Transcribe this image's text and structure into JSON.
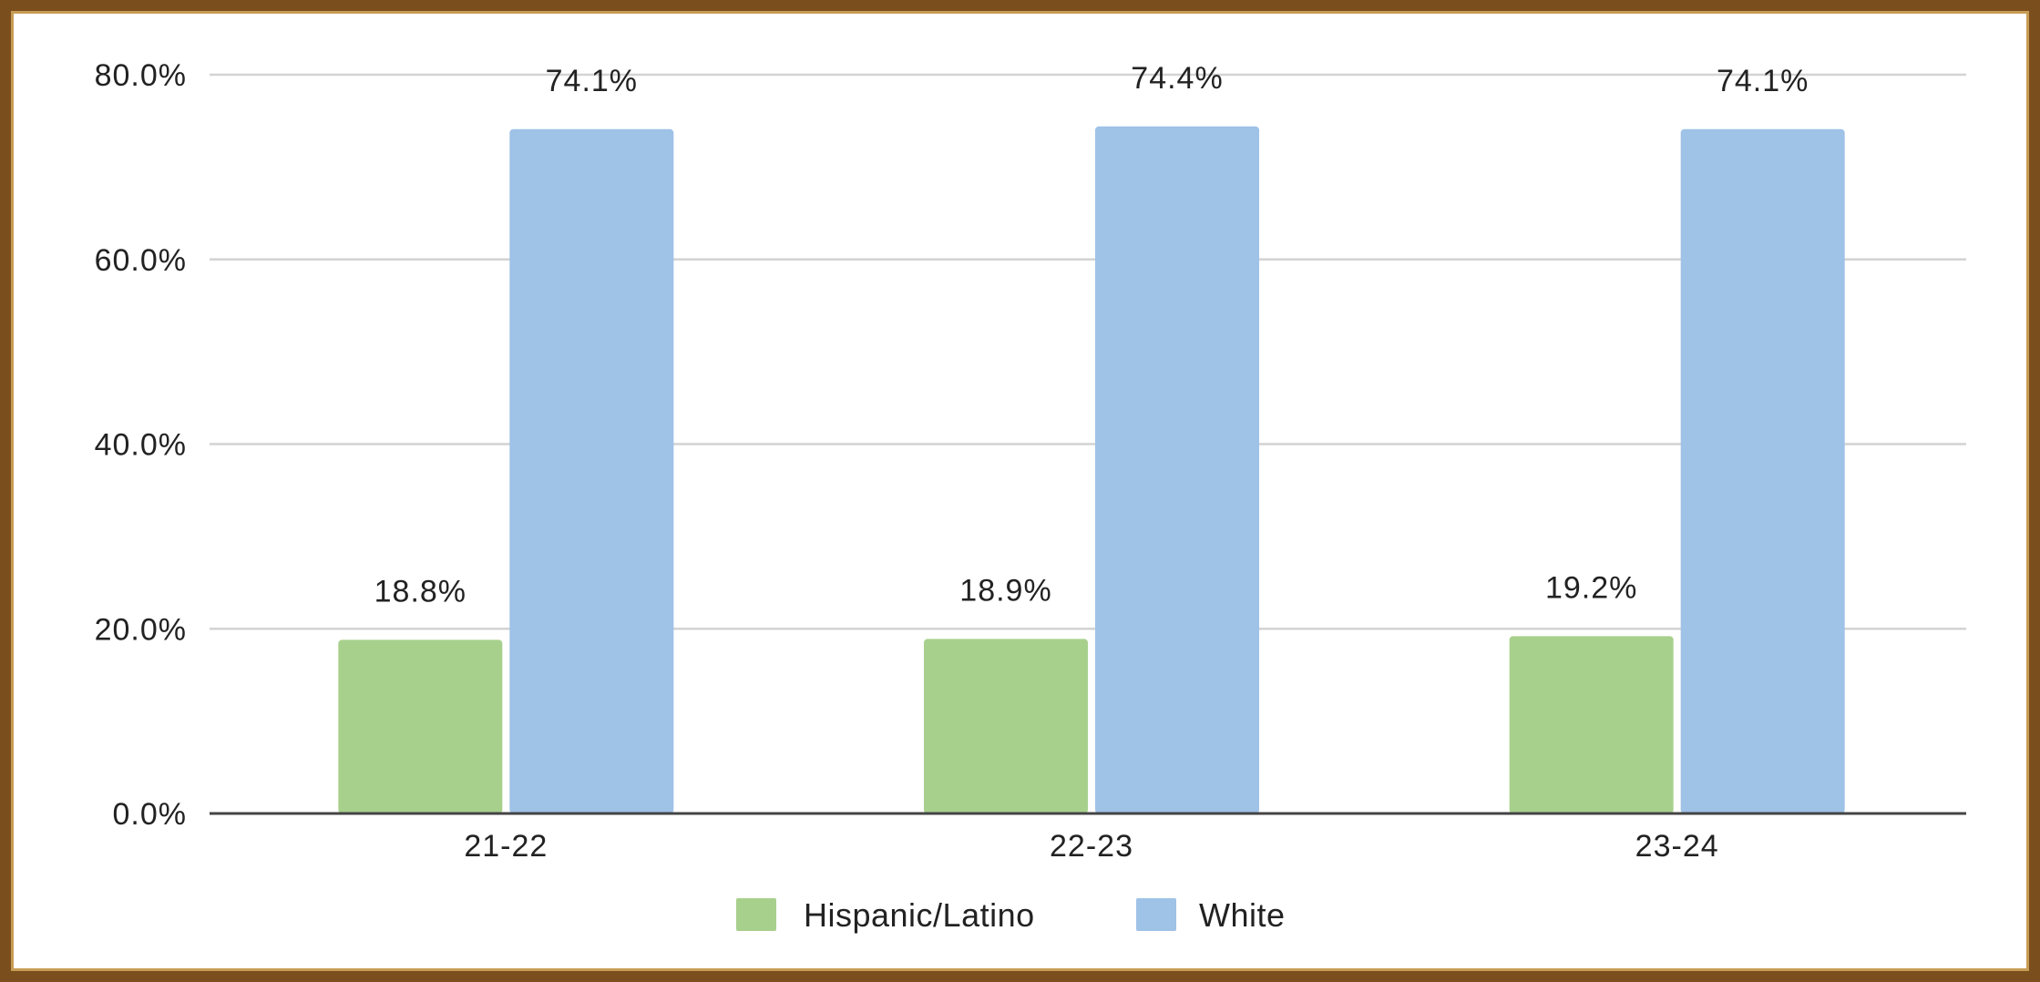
{
  "chart_data": {
    "type": "bar",
    "categories": [
      "21-22",
      "22-23",
      "23-24"
    ],
    "series": [
      {
        "name": "Hispanic/Latino",
        "values": [
          18.8,
          18.9,
          19.2
        ],
        "labels": [
          "18.8%",
          "18.9%",
          "19.2%"
        ],
        "color": "#a8d08d"
      },
      {
        "name": "White",
        "values": [
          74.1,
          74.4,
          74.1
        ],
        "labels": [
          "74.1%",
          "74.4%",
          "74.1%"
        ],
        "color": "#9fc2e7"
      }
    ],
    "ylim": [
      0,
      80
    ],
    "yticks": [
      "0.0%",
      "20.0%",
      "40.0%",
      "60.0%",
      "80.0%"
    ],
    "grid": true,
    "legend_position": "bottom",
    "title": "",
    "xlabel": "",
    "ylabel": ""
  },
  "colors": {
    "frame_outer": "#7a4f1d",
    "frame_inner": "#c79c55",
    "gridline": "#d3d3d3",
    "axis": "#444444"
  }
}
